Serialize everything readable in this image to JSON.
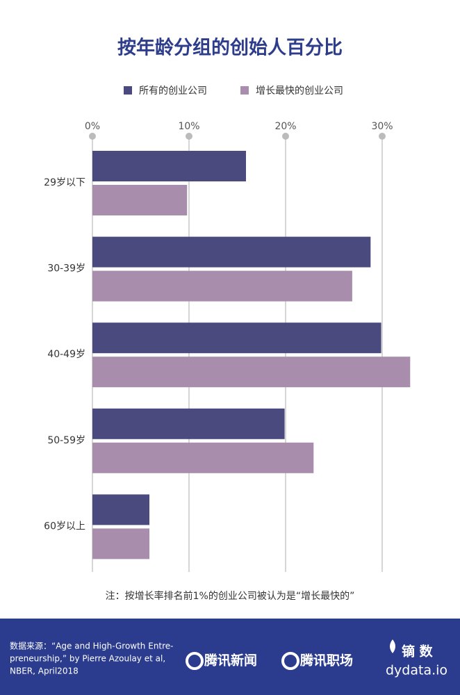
{
  "chart_data": {
    "type": "hbar",
    "title": "按年龄分组的创始人百分比",
    "categories": [
      "29岁以下",
      "30-39岁",
      "40-49岁",
      "50-59岁",
      "60岁以上"
    ],
    "series": [
      {
        "name": "所有的创业公司",
        "color": "#4a4a7e",
        "values": [
          15.9,
          28.8,
          29.9,
          19.9,
          5.9
        ]
      },
      {
        "name": "增长最快的创业公司",
        "color": "#a88dad",
        "values": [
          9.8,
          26.9,
          32.9,
          22.9,
          5.9
        ]
      }
    ],
    "xlim": [
      0,
      34
    ],
    "xticks": [
      {
        "value": 0,
        "label": "0%"
      },
      {
        "value": 10,
        "label": "10%"
      },
      {
        "value": 20,
        "label": "20%"
      },
      {
        "value": 30,
        "label": "30%"
      }
    ],
    "grid": true,
    "note": "注：按增长率排名前1%的创业公司被认为是“增长最快的”"
  },
  "footer": {
    "source": [
      "数据来源：“Age and High-Growth Entre-",
      "preneurship,” by Pierre Azoulay et al,",
      "NBER, April2018"
    ],
    "logos": [
      "腾讯新闻",
      "腾讯职场"
    ],
    "brand": "镝 数",
    "brand_url": "dydata.io"
  }
}
